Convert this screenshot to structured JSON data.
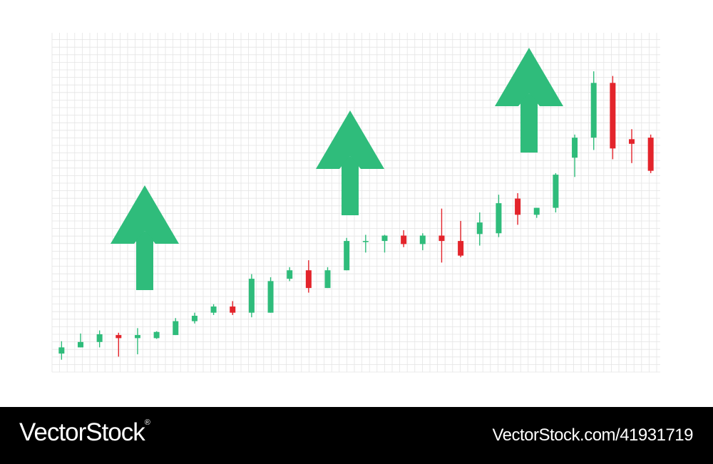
{
  "chart_data": {
    "type": "candlestick",
    "grid": true,
    "colors": {
      "up": "#2fbc7b",
      "down": "#e3242b",
      "arrow": "#2fbc7b",
      "grid": "#e4e4e4"
    },
    "ylim": [
      0,
      44
    ],
    "candles": [
      {
        "o": 2.4,
        "c": 3.2,
        "h": 4.0,
        "l": 1.6
      },
      {
        "o": 3.2,
        "c": 3.9,
        "h": 5.0,
        "l": 3.2
      },
      {
        "o": 3.9,
        "c": 4.9,
        "h": 5.4,
        "l": 3.2
      },
      {
        "o": 4.8,
        "c": 4.4,
        "h": 5.1,
        "l": 2.0
      },
      {
        "o": 4.4,
        "c": 4.8,
        "h": 5.7,
        "l": 2.3
      },
      {
        "o": 4.4,
        "c": 5.2,
        "h": 5.3,
        "l": 4.3
      },
      {
        "o": 4.8,
        "c": 6.6,
        "h": 7.0,
        "l": 4.8
      },
      {
        "o": 6.6,
        "c": 7.3,
        "h": 7.7,
        "l": 6.3
      },
      {
        "o": 7.7,
        "c": 8.5,
        "h": 8.8,
        "l": 7.4
      },
      {
        "o": 8.5,
        "c": 7.7,
        "h": 9.2,
        "l": 7.4
      },
      {
        "o": 7.7,
        "c": 12.1,
        "h": 12.7,
        "l": 7.1
      },
      {
        "o": 7.7,
        "c": 11.8,
        "h": 12.3,
        "l": 7.7
      },
      {
        "o": 12.1,
        "c": 13.2,
        "h": 13.6,
        "l": 11.8
      },
      {
        "o": 13.2,
        "c": 10.9,
        "h": 14.5,
        "l": 10.3
      },
      {
        "o": 10.9,
        "c": 13.2,
        "h": 13.6,
        "l": 10.9
      },
      {
        "o": 13.2,
        "c": 17.0,
        "h": 17.4,
        "l": 13.2
      },
      {
        "o": 17.0,
        "c": 17.0,
        "h": 17.8,
        "l": 15.5
      },
      {
        "o": 17.0,
        "c": 17.7,
        "h": 17.8,
        "l": 15.5
      },
      {
        "o": 17.7,
        "c": 16.6,
        "h": 18.4,
        "l": 16.2
      },
      {
        "o": 16.6,
        "c": 17.7,
        "h": 18.0,
        "l": 15.8
      },
      {
        "o": 17.7,
        "c": 17.0,
        "h": 21.2,
        "l": 14.2
      },
      {
        "o": 17.0,
        "c": 15.1,
        "h": 19.6,
        "l": 14.9
      },
      {
        "o": 17.9,
        "c": 19.4,
        "h": 20.7,
        "l": 16.4
      },
      {
        "o": 18.0,
        "c": 21.9,
        "h": 23.0,
        "l": 17.5
      },
      {
        "o": 22.5,
        "c": 20.4,
        "h": 23.2,
        "l": 19.1
      },
      {
        "o": 20.4,
        "c": 21.3,
        "h": 21.3,
        "l": 20.0
      },
      {
        "o": 21.3,
        "c": 25.6,
        "h": 25.8,
        "l": 20.7
      },
      {
        "o": 27.8,
        "c": 30.4,
        "h": 30.8,
        "l": 25.3
      },
      {
        "o": 30.4,
        "c": 37.5,
        "h": 39.0,
        "l": 28.8
      },
      {
        "o": 37.5,
        "c": 29.0,
        "h": 38.4,
        "l": 27.6
      },
      {
        "o": 30.2,
        "c": 29.6,
        "h": 31.5,
        "l": 27.1
      },
      {
        "o": 30.4,
        "c": 26.1,
        "h": 30.8,
        "l": 25.8
      }
    ],
    "arrows": [
      {
        "name": "arrow-up-1",
        "after_candle": 4.5
      },
      {
        "name": "arrow-up-2",
        "after_candle": 15.5
      },
      {
        "name": "arrow-up-3",
        "after_candle": 25.5
      }
    ]
  },
  "footer": {
    "brand": "VectorStock",
    "brand_mark": "®",
    "asset_id": "VectorStock.com/41931719"
  }
}
